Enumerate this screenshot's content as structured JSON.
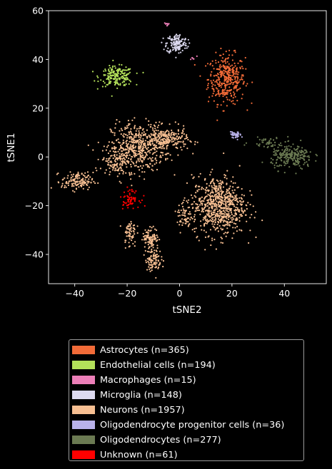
{
  "chart_data": {
    "type": "scatter",
    "xlabel": "tSNE2",
    "ylabel": "tSNE1",
    "xlim": [
      -50,
      56
    ],
    "ylim": [
      -52,
      60
    ],
    "xticks": [
      -40,
      -20,
      0,
      20,
      40
    ],
    "yticks": [
      -40,
      -20,
      0,
      20,
      40,
      60
    ],
    "grid": false,
    "legend_position": "bottom, below plot",
    "series": [
      {
        "name": "Astrocytes (n=365)",
        "color": "#f26b38",
        "n": 365,
        "clusters": [
          {
            "x": 18,
            "y": 32,
            "sx": 3.5,
            "sy": 5,
            "w": 1
          }
        ]
      },
      {
        "name": "Endothelial cells (n=194)",
        "color": "#b3e05a",
        "n": 194,
        "clusters": [
          {
            "x": -24,
            "y": 33,
            "sx": 3.2,
            "sy": 2,
            "w": 1
          }
        ]
      },
      {
        "name": "Macrophages (n=15)",
        "color": "#ec7fb8",
        "n": 15,
        "clusters": [
          {
            "x": -5,
            "y": 54.5,
            "sx": 0.4,
            "sy": 0.3,
            "w": 0.6
          },
          {
            "x": 5,
            "y": 40.5,
            "sx": 0.8,
            "sy": 0.4,
            "w": 0.4
          }
        ]
      },
      {
        "name": "Microglia (n=148)",
        "color": "#dddaf0",
        "n": 148,
        "clusters": [
          {
            "x": -1,
            "y": 46.5,
            "sx": 2,
            "sy": 2,
            "w": 1
          }
        ]
      },
      {
        "name": "Neurons (n=1957)",
        "color": "#f7bf92",
        "n": 1957,
        "clusters": [
          {
            "x": -16,
            "y": 4,
            "sx": 5,
            "sy": 5,
            "w": 0.22
          },
          {
            "x": -5,
            "y": 7,
            "sx": 4,
            "sy": 2.5,
            "w": 0.12
          },
          {
            "x": -24,
            "y": -1,
            "sx": 3,
            "sy": 3,
            "w": 0.07
          },
          {
            "x": -39,
            "y": -10,
            "sx": 3,
            "sy": 1.8,
            "w": 0.07
          },
          {
            "x": 15,
            "y": -20,
            "sx": 5,
            "sy": 6,
            "w": 0.36
          },
          {
            "x": -11,
            "y": -33,
            "sx": 1.5,
            "sy": 2,
            "w": 0.05
          },
          {
            "x": -10,
            "y": -42,
            "sx": 1.5,
            "sy": 2.5,
            "w": 0.05
          },
          {
            "x": -19,
            "y": -31,
            "sx": 1.2,
            "sy": 3,
            "w": 0.03
          },
          {
            "x": 2,
            "y": -24,
            "sx": 1.5,
            "sy": 3,
            "w": 0.03
          }
        ]
      },
      {
        "name": "Oligodendrocyte progenitor cells (n=36)",
        "color": "#b9b2ea",
        "n": 36,
        "clusters": [
          {
            "x": 21.5,
            "y": 9,
            "sx": 1,
            "sy": 0.6,
            "w": 1
          }
        ]
      },
      {
        "name": "Oligodendrocytes (n=277)",
        "color": "#6b7a52",
        "n": 277,
        "clusters": [
          {
            "x": 43,
            "y": 0,
            "sx": 4,
            "sy": 2.5,
            "w": 0.85
          },
          {
            "x": 33,
            "y": 6,
            "sx": 3,
            "sy": 1,
            "w": 0.15
          }
        ]
      },
      {
        "name": "Unknown (n=61)",
        "color": "#ff0000",
        "n": 61,
        "clusters": [
          {
            "x": -19,
            "y": -17,
            "sx": 1.8,
            "sy": 1.8,
            "w": 1
          }
        ]
      }
    ]
  }
}
